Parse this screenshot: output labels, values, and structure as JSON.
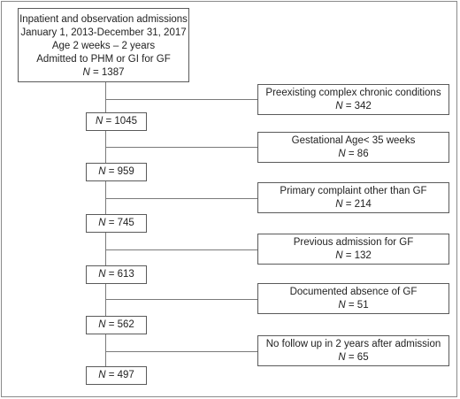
{
  "top": {
    "line1": "Inpatient and observation admissions",
    "line2": "January 1, 2013-December 31, 2017",
    "line3": "Age 2 weeks – 2 years",
    "line4": "Admitted to PHM or GI for GF",
    "n_prefix": "N",
    "n_value": " = 1387"
  },
  "steps": [
    {
      "n": " = 1045",
      "exclusion": "Preexisting complex chronic conditions",
      "excluded_n": " = 342"
    },
    {
      "n": " = 959",
      "exclusion": "Gestational Age< 35 weeks",
      "excluded_n": " = 86"
    },
    {
      "n": " = 745",
      "exclusion": "Primary complaint other than GF",
      "excluded_n": " = 214"
    },
    {
      "n": " = 613",
      "exclusion": "Previous admission for GF",
      "excluded_n": " = 132"
    },
    {
      "n": " = 562",
      "exclusion": "Documented absence of GF",
      "excluded_n": " = 51"
    },
    {
      "n": " = 497",
      "exclusion": "No follow up in 2 years after admission",
      "excluded_n": " = 65"
    }
  ],
  "n_letter": "N"
}
